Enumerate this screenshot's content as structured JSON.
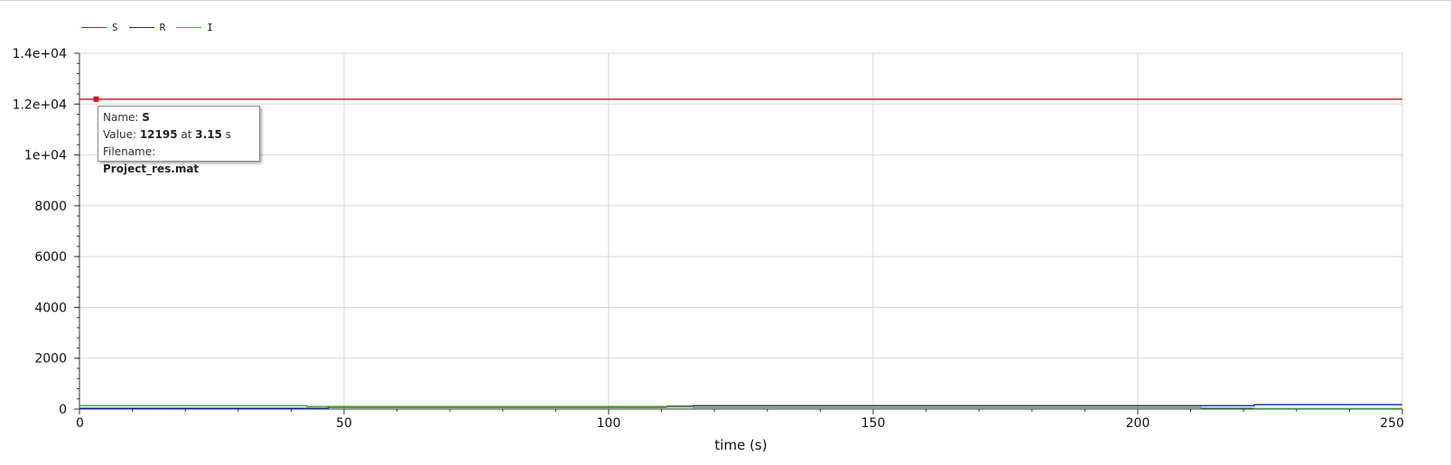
{
  "legend": [
    {
      "name": "S",
      "color": "#e01010"
    },
    {
      "name": "R",
      "color": "#1a1ac8"
    },
    {
      "name": "I",
      "color": "#30b030"
    }
  ],
  "tooltip": {
    "name_label": "Name:",
    "name_value": "S",
    "value_label": "Value:",
    "value_value": "12195",
    "at_label": "at",
    "at_value": "3.15",
    "unit": "s",
    "filename_label": "Filename:",
    "filename_value": "Project_res.mat"
  },
  "chart_data": {
    "type": "line",
    "title": "",
    "xlabel": "time (s)",
    "ylabel": "",
    "xlim": [
      0,
      250
    ],
    "ylim": [
      0,
      14000
    ],
    "x_ticks": [
      0,
      50,
      100,
      150,
      200,
      250
    ],
    "x_tick_labels": [
      "0",
      "50",
      "100",
      "150",
      "200",
      "250"
    ],
    "y_ticks": [
      0,
      2000,
      4000,
      6000,
      8000,
      10000,
      12000,
      14000
    ],
    "y_tick_labels": [
      "0",
      "2000",
      "4000",
      "6000",
      "8000",
      "1e+04",
      "1.2e+04",
      "1.4e+04"
    ],
    "grid": true,
    "legend_position": "top-left",
    "series": [
      {
        "name": "S",
        "color": "#e01010",
        "x": [
          0,
          250
        ],
        "y": [
          12195,
          12195
        ]
      },
      {
        "name": "R",
        "color": "#1a1ac8",
        "x": [
          0,
          47,
          47,
          111,
          111,
          116,
          116,
          222,
          222,
          250
        ],
        "y": [
          30,
          30,
          70,
          70,
          110,
          110,
          130,
          130,
          170,
          170
        ]
      },
      {
        "name": "I",
        "color": "#30b030",
        "x": [
          0,
          43,
          43,
          111,
          111,
          116,
          116,
          212,
          212,
          222,
          222,
          250
        ],
        "y": [
          130,
          130,
          100,
          100,
          80,
          80,
          60,
          60,
          40,
          40,
          20,
          20
        ]
      }
    ],
    "highlight": {
      "series": "S",
      "x": 3.15,
      "y": 12195
    }
  }
}
